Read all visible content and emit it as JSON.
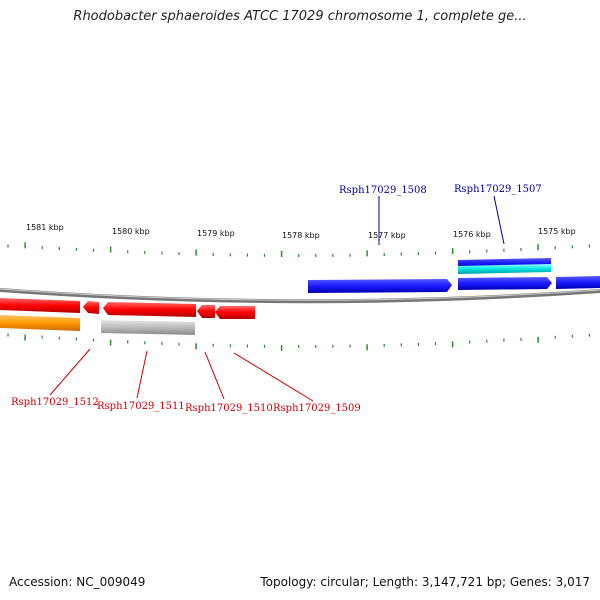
{
  "title": "Rhodobacter sphaeroides ATCC 17029 chromosome 1, complete ge...",
  "footer": {
    "accession": "Accession: NC_009049",
    "summary": "Topology: circular; Length: 3,147,721 bp; Genes: 3,017"
  },
  "colors": {
    "forward_gene": "#1a1aff",
    "reverse_gene": "#ff0000",
    "rna_gene": "#00e5e5",
    "cds_reverse_alt": "#ff9900",
    "pseudo_gene": "#bbbbbb",
    "tick": "#2e8b2e",
    "backbone": "#888888",
    "forward_label": "#000099",
    "reverse_label": "#cc0000"
  },
  "scale_labels": [
    "1581 kbp",
    "1580 kbp",
    "1579 kbp",
    "1578 kbp",
    "1577 kbp",
    "1576 kbp",
    "1575 kbp"
  ],
  "gene_labels": {
    "forward": [
      "Rsph17029_1508",
      "Rsph17029_1507"
    ],
    "reverse": [
      "Rsph17029_1512",
      "Rsph17029_1511",
      "Rsph17029_1510",
      "Rsph17029_1509"
    ]
  }
}
